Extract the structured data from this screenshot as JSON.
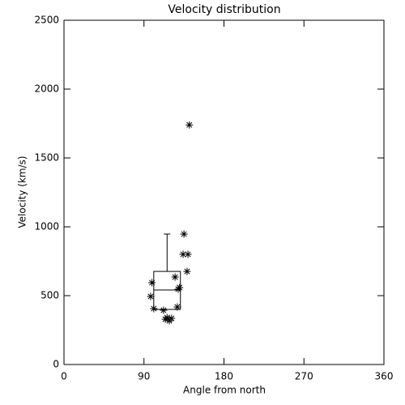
{
  "chart_data": {
    "type": "scatter",
    "title": "Velocity distribution",
    "x_label": "Angle from north",
    "y_label": "Velocity (km/s)",
    "xlim": [
      0,
      360
    ],
    "xticks": [
      0,
      90,
      180,
      270,
      360
    ],
    "ylim": [
      0,
      2500
    ],
    "yticks": [
      0,
      500,
      1000,
      1500,
      2000,
      2500
    ],
    "color": "#000000",
    "x": [
      141,
      135,
      134,
      139.5,
      138.5,
      125,
      130,
      128.5,
      99,
      97.5,
      101,
      127.5,
      112,
      116,
      114,
      121,
      118.5
    ],
    "values": [
      1740,
      947,
      800,
      800,
      676,
      635,
      559,
      547,
      594,
      494,
      406,
      418,
      394,
      341,
      329,
      335,
      318
    ],
    "box": {
      "x": [
        101,
        131
      ],
      "q1": 400,
      "median": 541,
      "q3": 676,
      "whisker_high": 947
    }
  }
}
